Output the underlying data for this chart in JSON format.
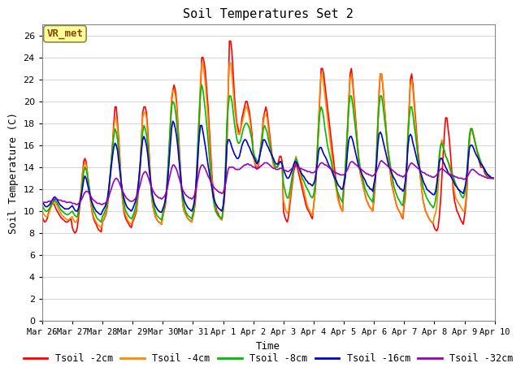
{
  "title": "Soil Temperatures Set 2",
  "xlabel": "Time",
  "ylabel": "Soil Temperature (C)",
  "ylim": [
    0,
    27
  ],
  "yticks": [
    0,
    2,
    4,
    6,
    8,
    10,
    12,
    14,
    16,
    18,
    20,
    22,
    24,
    26
  ],
  "fig_bg_color": "#ffffff",
  "plot_bg_color": "#ffffff",
  "grid_color": "#d8d8d8",
  "annotation_text": "VR_met",
  "annotation_bg": "#ffff99",
  "annotation_border": "#8B4513",
  "series": [
    {
      "label": "Tsoil -2cm",
      "color": "#ff0000"
    },
    {
      "label": "Tsoil -4cm",
      "color": "#ff8800"
    },
    {
      "label": "Tsoil -8cm",
      "color": "#00bb00"
    },
    {
      "label": "Tsoil -16cm",
      "color": "#0000cc"
    },
    {
      "label": "Tsoil -32cm",
      "color": "#9900bb"
    }
  ],
  "x_tick_labels": [
    "Mar 26",
    "Mar 27",
    "Mar 28",
    "Mar 29",
    "Mar 30",
    "Mar 31",
    "Apr 1",
    "Apr 2",
    "Apr 3",
    "Apr 4",
    "Apr 5",
    "Apr 6",
    "Apr 7",
    "Apr 8",
    "Apr 9",
    "Apr 10"
  ],
  "tsoil_2cm": [
    9.5,
    9.2,
    9.0,
    9.1,
    9.3,
    9.8,
    10.2,
    10.5,
    10.8,
    10.7,
    10.5,
    10.2,
    10.0,
    9.8,
    9.6,
    9.4,
    9.3,
    9.2,
    9.1,
    9.0,
    9.0,
    9.1,
    9.2,
    9.3,
    8.5,
    8.2,
    8.0,
    8.1,
    8.5,
    9.5,
    10.5,
    11.5,
    13.0,
    14.5,
    14.8,
    14.5,
    13.5,
    12.5,
    11.5,
    10.5,
    9.8,
    9.3,
    9.0,
    8.8,
    8.5,
    8.3,
    8.2,
    8.1,
    9.0,
    9.2,
    9.5,
    9.8,
    10.5,
    11.5,
    13.0,
    14.5,
    16.0,
    18.0,
    19.5,
    19.5,
    18.0,
    16.5,
    14.5,
    12.5,
    11.0,
    10.0,
    9.5,
    9.2,
    9.0,
    8.8,
    8.6,
    8.5,
    9.0,
    9.3,
    9.6,
    10.0,
    11.0,
    12.5,
    14.0,
    16.5,
    19.0,
    19.5,
    19.5,
    19.0,
    17.5,
    15.5,
    13.5,
    11.5,
    10.5,
    10.0,
    9.5,
    9.3,
    9.1,
    9.0,
    8.9,
    8.8,
    9.5,
    10.0,
    10.5,
    11.5,
    13.0,
    15.0,
    17.5,
    20.0,
    21.0,
    21.5,
    21.0,
    20.0,
    18.0,
    16.0,
    14.0,
    12.0,
    10.5,
    10.0,
    9.8,
    9.5,
    9.3,
    9.2,
    9.1,
    9.0,
    9.5,
    10.0,
    11.0,
    12.5,
    15.0,
    18.0,
    21.0,
    24.0,
    24.0,
    23.5,
    22.5,
    21.0,
    19.5,
    17.5,
    15.5,
    13.5,
    12.0,
    11.0,
    10.5,
    10.0,
    9.8,
    9.5,
    9.3,
    9.2,
    10.0,
    11.0,
    13.0,
    16.0,
    20.5,
    25.5,
    25.5,
    24.5,
    22.5,
    20.5,
    19.0,
    18.0,
    17.5,
    17.0,
    17.5,
    18.5,
    19.0,
    19.5,
    20.0,
    20.0,
    19.5,
    19.0,
    18.0,
    17.0,
    15.0,
    14.5,
    14.0,
    13.8,
    14.0,
    15.0,
    16.0,
    17.0,
    18.5,
    19.0,
    19.5,
    19.0,
    18.0,
    17.0,
    16.0,
    15.0,
    14.5,
    14.0,
    14.0,
    14.0,
    14.5,
    15.0,
    15.0,
    14.5,
    10.0,
    9.5,
    9.2,
    9.0,
    9.5,
    10.5,
    11.5,
    12.5,
    13.5,
    14.0,
    14.5,
    14.0,
    13.5,
    13.0,
    12.5,
    12.0,
    11.5,
    11.0,
    10.5,
    10.2,
    10.0,
    9.8,
    9.5,
    9.3,
    10.5,
    11.5,
    13.0,
    15.5,
    18.0,
    20.5,
    23.0,
    23.0,
    22.5,
    21.5,
    20.5,
    19.5,
    18.5,
    17.5,
    16.5,
    15.5,
    14.5,
    13.5,
    12.5,
    11.5,
    11.0,
    10.5,
    10.2,
    10.0,
    12.0,
    13.0,
    15.0,
    17.5,
    20.0,
    22.5,
    23.0,
    22.0,
    20.5,
    19.0,
    17.5,
    16.0,
    14.5,
    13.5,
    13.0,
    12.5,
    12.0,
    11.5,
    11.0,
    10.8,
    10.5,
    10.3,
    10.2,
    10.0,
    11.0,
    12.5,
    14.5,
    17.5,
    20.5,
    22.5,
    22.5,
    21.5,
    20.0,
    18.5,
    17.0,
    15.5,
    14.5,
    13.5,
    12.5,
    12.0,
    11.5,
    11.0,
    10.5,
    10.2,
    10.0,
    9.8,
    9.5,
    9.3,
    10.5,
    11.5,
    13.5,
    16.5,
    19.5,
    22.0,
    22.5,
    21.5,
    20.0,
    18.5,
    17.0,
    15.5,
    14.5,
    13.0,
    12.0,
    11.0,
    10.5,
    10.0,
    9.8,
    9.5,
    9.3,
    9.1,
    9.0,
    8.9,
    8.5,
    8.3,
    8.2,
    8.5,
    9.5,
    11.0,
    13.0,
    15.0,
    17.0,
    18.5,
    18.5,
    17.5,
    16.5,
    15.0,
    13.5,
    12.0,
    11.0,
    10.5,
    10.0,
    9.8,
    9.5,
    9.2,
    9.0,
    8.8,
    9.5,
    10.5,
    12.0,
    14.5,
    16.5,
    17.5,
    17.5,
    17.0,
    16.5,
    16.0,
    15.5,
    15.0,
    14.5,
    14.0,
    14.0,
    14.0,
    13.5,
    13.3,
    13.2,
    13.1,
    13.0,
    13.0,
    13.0,
    13.0
  ],
  "tsoil_4cm": [
    10.0,
    9.8,
    9.6,
    9.5,
    9.5,
    9.7,
    10.0,
    10.3,
    10.6,
    10.8,
    10.9,
    10.7,
    10.5,
    10.2,
    10.0,
    9.8,
    9.6,
    9.5,
    9.4,
    9.3,
    9.2,
    9.2,
    9.3,
    9.4,
    9.5,
    9.2,
    9.0,
    9.0,
    9.2,
    10.0,
    11.0,
    12.0,
    13.5,
    14.0,
    14.5,
    14.2,
    13.5,
    12.5,
    11.5,
    10.5,
    10.0,
    9.5,
    9.2,
    9.0,
    8.8,
    8.7,
    8.6,
    8.5,
    9.0,
    9.3,
    9.6,
    10.0,
    10.8,
    11.8,
    13.0,
    14.5,
    16.0,
    17.5,
    18.5,
    18.5,
    17.5,
    16.0,
    14.0,
    12.5,
    11.0,
    10.2,
    9.8,
    9.5,
    9.2,
    9.0,
    8.9,
    8.8,
    9.2,
    9.5,
    9.8,
    10.3,
    11.3,
    12.8,
    14.5,
    16.5,
    18.5,
    19.0,
    19.0,
    18.5,
    17.0,
    15.0,
    13.2,
    11.5,
    10.5,
    10.0,
    9.6,
    9.3,
    9.1,
    9.0,
    8.9,
    8.8,
    9.5,
    10.0,
    10.8,
    11.8,
    13.5,
    15.5,
    18.0,
    20.5,
    21.0,
    21.0,
    20.5,
    19.5,
    17.5,
    15.5,
    13.5,
    11.8,
    10.5,
    10.0,
    9.7,
    9.5,
    9.3,
    9.2,
    9.1,
    9.0,
    9.5,
    10.2,
    11.5,
    13.5,
    16.0,
    19.0,
    22.0,
    23.5,
    23.5,
    22.5,
    21.5,
    20.0,
    18.5,
    16.5,
    14.5,
    13.0,
    11.5,
    10.8,
    10.2,
    9.8,
    9.6,
    9.4,
    9.3,
    9.2,
    10.0,
    11.5,
    14.0,
    17.5,
    21.0,
    23.5,
    23.5,
    22.5,
    21.0,
    19.5,
    18.5,
    17.5,
    17.0,
    17.0,
    17.5,
    18.0,
    18.5,
    19.0,
    19.5,
    19.5,
    19.0,
    18.5,
    17.5,
    16.5,
    15.0,
    14.5,
    14.2,
    14.0,
    14.2,
    15.0,
    16.0,
    17.0,
    18.0,
    18.8,
    18.8,
    18.5,
    17.5,
    16.5,
    15.5,
    14.8,
    14.2,
    14.0,
    14.0,
    14.0,
    14.2,
    14.5,
    14.5,
    14.2,
    11.0,
    10.5,
    10.0,
    9.8,
    10.0,
    11.0,
    12.0,
    13.0,
    14.0,
    14.5,
    15.0,
    14.5,
    14.0,
    13.5,
    13.0,
    12.5,
    12.0,
    11.5,
    11.0,
    10.5,
    10.2,
    10.0,
    9.8,
    9.6,
    10.5,
    11.8,
    13.5,
    16.0,
    18.5,
    21.0,
    22.5,
    22.5,
    21.5,
    20.5,
    19.5,
    18.5,
    17.5,
    16.5,
    15.5,
    14.5,
    13.5,
    12.8,
    12.0,
    11.2,
    10.8,
    10.4,
    10.2,
    10.0,
    12.5,
    13.5,
    15.5,
    18.0,
    20.5,
    22.0,
    22.5,
    21.5,
    20.0,
    18.5,
    17.0,
    15.5,
    14.2,
    13.5,
    13.0,
    12.5,
    12.0,
    11.5,
    11.0,
    10.8,
    10.5,
    10.3,
    10.2,
    10.0,
    11.5,
    13.0,
    15.0,
    18.0,
    21.0,
    22.5,
    22.5,
    21.5,
    20.0,
    18.5,
    17.0,
    15.5,
    14.5,
    13.5,
    12.8,
    12.0,
    11.5,
    11.0,
    10.5,
    10.2,
    10.0,
    9.8,
    9.6,
    9.4,
    11.0,
    12.0,
    14.0,
    17.0,
    19.5,
    21.5,
    22.0,
    21.0,
    19.5,
    18.0,
    16.5,
    15.0,
    14.0,
    13.0,
    12.0,
    11.0,
    10.5,
    10.0,
    9.8,
    9.5,
    9.3,
    9.1,
    9.0,
    8.9,
    9.5,
    9.8,
    10.5,
    12.0,
    14.0,
    16.0,
    16.5,
    16.0,
    15.5,
    15.0,
    14.8,
    14.5,
    14.0,
    13.5,
    13.0,
    12.5,
    11.8,
    11.2,
    11.0,
    10.8,
    10.6,
    10.4,
    10.2,
    10.0,
    10.0,
    11.0,
    12.5,
    14.8,
    16.5,
    17.5,
    17.5,
    17.0,
    16.5,
    16.0,
    15.5,
    15.2,
    14.8,
    14.5,
    14.2,
    14.0,
    13.8,
    13.5,
    13.3,
    13.2,
    13.1,
    13.0,
    13.0,
    13.0
  ],
  "tsoil_8cm": [
    10.5,
    10.3,
    10.1,
    10.0,
    10.0,
    10.1,
    10.3,
    10.5,
    10.7,
    10.9,
    11.0,
    10.9,
    10.7,
    10.5,
    10.3,
    10.1,
    10.0,
    9.9,
    9.8,
    9.7,
    9.7,
    9.7,
    9.8,
    9.9,
    10.0,
    9.8,
    9.6,
    9.5,
    9.5,
    10.0,
    10.8,
    11.5,
    12.5,
    13.5,
    14.0,
    13.8,
    13.2,
    12.5,
    11.8,
    11.0,
    10.5,
    10.0,
    9.8,
    9.5,
    9.3,
    9.2,
    9.1,
    9.0,
    9.5,
    9.7,
    10.0,
    10.3,
    11.0,
    12.0,
    13.2,
    14.5,
    15.8,
    16.8,
    17.5,
    17.2,
    16.5,
    15.2,
    13.8,
    12.5,
    11.5,
    10.8,
    10.2,
    9.9,
    9.7,
    9.5,
    9.4,
    9.3,
    9.5,
    9.8,
    10.2,
    10.7,
    11.5,
    12.8,
    14.2,
    15.8,
    17.2,
    17.8,
    17.5,
    17.0,
    16.0,
    14.5,
    13.0,
    11.8,
    11.0,
    10.5,
    10.0,
    9.7,
    9.5,
    9.4,
    9.3,
    9.2,
    9.8,
    10.2,
    11.0,
    12.0,
    13.8,
    15.8,
    17.8,
    19.5,
    20.0,
    19.8,
    19.2,
    18.2,
    16.8,
    15.0,
    13.5,
    12.0,
    11.0,
    10.5,
    10.0,
    9.8,
    9.6,
    9.5,
    9.4,
    9.3,
    9.8,
    10.5,
    11.8,
    13.8,
    16.5,
    18.8,
    20.8,
    21.5,
    21.0,
    20.0,
    19.0,
    17.8,
    16.5,
    15.0,
    13.5,
    12.2,
    11.2,
    10.5,
    10.0,
    9.8,
    9.6,
    9.5,
    9.4,
    9.3,
    10.2,
    11.8,
    14.5,
    18.0,
    19.5,
    20.5,
    20.5,
    20.0,
    19.0,
    18.0,
    17.2,
    16.5,
    16.2,
    16.2,
    16.5,
    17.0,
    17.5,
    17.8,
    18.0,
    18.0,
    17.8,
    17.5,
    17.0,
    16.5,
    15.5,
    15.0,
    14.8,
    14.5,
    14.5,
    15.0,
    15.8,
    16.5,
    17.5,
    17.8,
    17.5,
    17.2,
    16.5,
    16.0,
    15.5,
    15.0,
    14.5,
    14.2,
    14.0,
    14.0,
    14.2,
    14.5,
    14.5,
    14.2,
    12.5,
    12.0,
    11.5,
    11.2,
    11.2,
    11.8,
    12.5,
    13.2,
    14.0,
    14.5,
    14.8,
    14.5,
    14.2,
    13.8,
    13.5,
    13.0,
    12.8,
    12.5,
    12.2,
    12.0,
    11.8,
    11.5,
    11.3,
    11.2,
    11.5,
    12.2,
    13.5,
    15.5,
    17.5,
    19.0,
    19.5,
    19.2,
    18.5,
    17.5,
    16.8,
    16.0,
    15.5,
    15.0,
    14.5,
    13.8,
    13.2,
    12.8,
    12.2,
    11.8,
    11.5,
    11.2,
    11.0,
    10.8,
    12.5,
    13.5,
    15.5,
    17.5,
    19.5,
    20.5,
    20.5,
    19.8,
    18.8,
    17.8,
    16.8,
    15.8,
    14.8,
    14.0,
    13.5,
    13.0,
    12.5,
    12.0,
    11.8,
    11.5,
    11.3,
    11.1,
    11.0,
    10.8,
    12.0,
    13.2,
    15.0,
    17.8,
    19.5,
    20.5,
    20.5,
    19.8,
    18.8,
    17.8,
    16.8,
    15.8,
    15.0,
    14.2,
    13.5,
    12.8,
    12.2,
    11.8,
    11.5,
    11.2,
    11.0,
    10.8,
    10.6,
    10.5,
    11.5,
    12.5,
    14.2,
    16.8,
    18.5,
    19.5,
    19.5,
    18.8,
    17.8,
    17.0,
    16.0,
    15.0,
    14.2,
    13.5,
    12.8,
    12.2,
    11.8,
    11.5,
    11.2,
    11.0,
    10.8,
    10.6,
    10.5,
    10.3,
    10.5,
    11.0,
    12.0,
    13.5,
    15.2,
    16.0,
    16.2,
    15.8,
    15.5,
    15.0,
    14.8,
    14.5,
    14.2,
    13.8,
    13.5,
    13.2,
    12.8,
    12.5,
    12.2,
    12.0,
    11.8,
    11.5,
    11.3,
    11.2,
    11.5,
    12.2,
    13.5,
    15.5,
    17.0,
    17.5,
    17.5,
    17.0,
    16.5,
    16.0,
    15.5,
    15.2,
    14.8,
    14.5,
    14.2,
    14.0,
    13.8,
    13.5,
    13.3,
    13.2,
    13.1,
    13.0,
    13.0,
    13.0
  ],
  "tsoil_16cm": [
    10.8,
    10.7,
    10.5,
    10.4,
    10.4,
    10.5,
    10.6,
    10.8,
    11.0,
    11.2,
    11.3,
    11.2,
    11.0,
    10.8,
    10.6,
    10.5,
    10.4,
    10.3,
    10.2,
    10.2,
    10.2,
    10.2,
    10.3,
    10.4,
    10.5,
    10.3,
    10.1,
    10.0,
    10.0,
    10.3,
    10.8,
    11.3,
    12.0,
    12.8,
    13.2,
    13.0,
    12.5,
    12.0,
    11.5,
    11.0,
    10.7,
    10.4,
    10.2,
    10.0,
    9.9,
    9.8,
    9.7,
    9.7,
    10.0,
    10.2,
    10.4,
    10.7,
    11.2,
    12.0,
    13.0,
    14.0,
    15.0,
    15.8,
    16.2,
    16.0,
    15.5,
    14.5,
    13.5,
    12.5,
    11.8,
    11.2,
    10.8,
    10.5,
    10.3,
    10.2,
    10.1,
    10.0,
    10.2,
    10.5,
    10.8,
    11.2,
    12.0,
    13.0,
    14.2,
    15.5,
    16.5,
    16.8,
    16.5,
    16.0,
    15.2,
    14.0,
    13.0,
    12.0,
    11.3,
    10.8,
    10.5,
    10.3,
    10.1,
    10.0,
    9.9,
    9.9,
    10.2,
    10.5,
    11.0,
    11.8,
    13.0,
    14.5,
    16.0,
    17.5,
    18.2,
    18.0,
    17.5,
    16.8,
    15.8,
    14.5,
    13.3,
    12.2,
    11.5,
    11.0,
    10.7,
    10.5,
    10.3,
    10.2,
    10.1,
    10.0,
    10.3,
    10.8,
    11.8,
    13.3,
    15.2,
    16.8,
    17.8,
    17.8,
    17.2,
    16.5,
    15.8,
    15.0,
    14.2,
    13.5,
    12.8,
    12.2,
    11.5,
    11.0,
    10.7,
    10.5,
    10.3,
    10.2,
    10.1,
    10.0,
    10.5,
    11.5,
    13.5,
    16.0,
    16.5,
    16.5,
    16.2,
    15.8,
    15.5,
    15.2,
    15.0,
    14.8,
    14.8,
    15.0,
    15.5,
    16.0,
    16.3,
    16.5,
    16.5,
    16.3,
    16.0,
    15.8,
    15.5,
    15.2,
    15.0,
    14.8,
    14.5,
    14.3,
    14.5,
    15.0,
    15.5,
    16.0,
    16.5,
    16.5,
    16.3,
    16.0,
    15.8,
    15.5,
    15.3,
    15.0,
    14.8,
    14.5,
    14.3,
    14.3,
    14.3,
    14.5,
    14.5,
    14.3,
    13.8,
    13.5,
    13.2,
    13.0,
    13.0,
    13.2,
    13.5,
    13.8,
    14.2,
    14.5,
    14.5,
    14.3,
    14.0,
    13.8,
    13.5,
    13.3,
    13.2,
    13.0,
    12.8,
    12.7,
    12.5,
    12.5,
    12.4,
    12.3,
    12.5,
    12.8,
    13.5,
    14.5,
    15.5,
    15.8,
    15.8,
    15.5,
    15.2,
    15.0,
    14.8,
    14.5,
    14.2,
    14.0,
    13.8,
    13.5,
    13.2,
    13.0,
    12.8,
    12.5,
    12.3,
    12.2,
    12.0,
    12.0,
    12.5,
    13.0,
    14.0,
    15.5,
    16.5,
    16.8,
    16.8,
    16.5,
    16.0,
    15.5,
    15.0,
    14.5,
    14.0,
    13.8,
    13.5,
    13.2,
    13.0,
    12.8,
    12.5,
    12.3,
    12.2,
    12.0,
    12.0,
    11.8,
    12.5,
    13.0,
    14.2,
    16.0,
    17.0,
    17.2,
    17.0,
    16.5,
    16.0,
    15.5,
    15.0,
    14.5,
    14.0,
    13.8,
    13.5,
    13.2,
    13.0,
    12.8,
    12.5,
    12.3,
    12.2,
    12.0,
    12.0,
    11.8,
    12.0,
    12.8,
    14.0,
    15.8,
    16.8,
    17.0,
    16.8,
    16.2,
    15.8,
    15.3,
    14.8,
    14.3,
    14.0,
    13.5,
    13.2,
    12.8,
    12.5,
    12.3,
    12.0,
    11.9,
    11.8,
    11.7,
    11.6,
    11.5,
    11.5,
    11.8,
    12.5,
    13.5,
    14.5,
    14.8,
    14.8,
    14.5,
    14.3,
    14.0,
    13.8,
    13.5,
    13.3,
    13.2,
    13.0,
    12.8,
    12.5,
    12.3,
    12.2,
    12.0,
    11.9,
    11.8,
    11.7,
    11.6,
    12.0,
    12.5,
    13.5,
    14.8,
    15.8,
    16.0,
    16.0,
    15.8,
    15.5,
    15.2,
    15.0,
    14.8,
    14.5,
    14.3,
    14.2,
    14.0,
    13.8,
    13.6,
    13.4,
    13.3,
    13.2,
    13.1,
    13.0,
    13.0
  ],
  "tsoil_32cm": [
    10.8,
    10.8,
    10.8,
    10.8,
    10.8,
    10.9,
    10.9,
    10.9,
    11.0,
    11.0,
    11.1,
    11.1,
    11.1,
    11.0,
    11.0,
    11.0,
    10.9,
    10.9,
    10.9,
    10.8,
    10.8,
    10.8,
    10.8,
    10.8,
    10.7,
    10.7,
    10.7,
    10.6,
    10.6,
    10.7,
    10.8,
    11.0,
    11.2,
    11.5,
    11.7,
    11.8,
    11.8,
    11.7,
    11.5,
    11.3,
    11.1,
    11.0,
    10.9,
    10.8,
    10.7,
    10.7,
    10.7,
    10.6,
    10.6,
    10.7,
    10.7,
    10.8,
    11.0,
    11.3,
    11.7,
    12.0,
    12.4,
    12.7,
    12.9,
    13.0,
    12.9,
    12.7,
    12.4,
    12.1,
    11.8,
    11.6,
    11.4,
    11.2,
    11.1,
    11.0,
    10.9,
    10.9,
    10.9,
    11.0,
    11.1,
    11.3,
    11.6,
    12.0,
    12.4,
    12.9,
    13.3,
    13.5,
    13.6,
    13.5,
    13.2,
    12.9,
    12.5,
    12.2,
    11.9,
    11.7,
    11.5,
    11.4,
    11.3,
    11.2,
    11.2,
    11.1,
    11.2,
    11.3,
    11.5,
    11.8,
    12.3,
    12.9,
    13.4,
    13.9,
    14.2,
    14.2,
    14.0,
    13.8,
    13.4,
    13.0,
    12.6,
    12.2,
    11.9,
    11.7,
    11.5,
    11.4,
    11.3,
    11.2,
    11.2,
    11.1,
    11.2,
    11.4,
    11.8,
    12.4,
    13.0,
    13.6,
    14.0,
    14.2,
    14.2,
    14.0,
    13.8,
    13.5,
    13.2,
    13.0,
    12.7,
    12.5,
    12.3,
    12.1,
    12.0,
    11.9,
    11.8,
    11.7,
    11.7,
    11.6,
    11.7,
    12.0,
    12.5,
    13.2,
    13.8,
    14.0,
    14.0,
    14.0,
    14.0,
    13.9,
    13.8,
    13.8,
    13.8,
    13.8,
    13.9,
    14.0,
    14.1,
    14.2,
    14.2,
    14.3,
    14.3,
    14.2,
    14.2,
    14.1,
    14.0,
    14.0,
    13.9,
    13.9,
    13.9,
    14.0,
    14.1,
    14.2,
    14.3,
    14.4,
    14.4,
    14.4,
    14.3,
    14.2,
    14.1,
    14.0,
    13.9,
    13.9,
    13.8,
    13.8,
    13.8,
    13.9,
    13.9,
    13.9,
    13.8,
    13.7,
    13.7,
    13.6,
    13.6,
    13.7,
    13.8,
    13.9,
    14.0,
    14.1,
    14.1,
    14.1,
    14.0,
    13.9,
    13.9,
    13.8,
    13.8,
    13.7,
    13.7,
    13.6,
    13.6,
    13.6,
    13.5,
    13.5,
    13.5,
    13.6,
    13.7,
    13.9,
    14.1,
    14.3,
    14.4,
    14.4,
    14.3,
    14.2,
    14.2,
    14.1,
    14.0,
    13.9,
    13.8,
    13.7,
    13.6,
    13.5,
    13.5,
    13.4,
    13.4,
    13.3,
    13.3,
    13.3,
    13.3,
    13.4,
    13.6,
    13.8,
    14.1,
    14.4,
    14.5,
    14.5,
    14.4,
    14.3,
    14.2,
    14.1,
    14.0,
    13.9,
    13.8,
    13.7,
    13.6,
    13.5,
    13.4,
    13.4,
    13.3,
    13.3,
    13.2,
    13.2,
    13.3,
    13.4,
    13.6,
    13.9,
    14.2,
    14.5,
    14.6,
    14.5,
    14.4,
    14.3,
    14.2,
    14.1,
    14.0,
    13.9,
    13.8,
    13.7,
    13.6,
    13.5,
    13.4,
    13.3,
    13.3,
    13.2,
    13.2,
    13.1,
    13.2,
    13.3,
    13.5,
    13.8,
    14.1,
    14.3,
    14.4,
    14.3,
    14.2,
    14.1,
    14.0,
    13.9,
    13.8,
    13.7,
    13.6,
    13.5,
    13.5,
    13.4,
    13.3,
    13.3,
    13.2,
    13.2,
    13.1,
    13.1,
    13.1,
    13.2,
    13.3,
    13.5,
    13.7,
    13.8,
    13.9,
    13.8,
    13.7,
    13.6,
    13.5,
    13.4,
    13.4,
    13.3,
    13.3,
    13.2,
    13.2,
    13.1,
    13.1,
    13.0,
    13.0,
    13.0,
    13.0,
    12.9,
    12.9,
    13.0,
    13.1,
    13.3,
    13.5,
    13.7,
    13.8,
    13.8,
    13.7,
    13.6,
    13.5,
    13.4,
    13.3,
    13.3,
    13.2,
    13.2,
    13.1,
    13.1,
    13.0,
    13.0,
    13.0,
    13.0,
    13.0,
    13.0
  ]
}
